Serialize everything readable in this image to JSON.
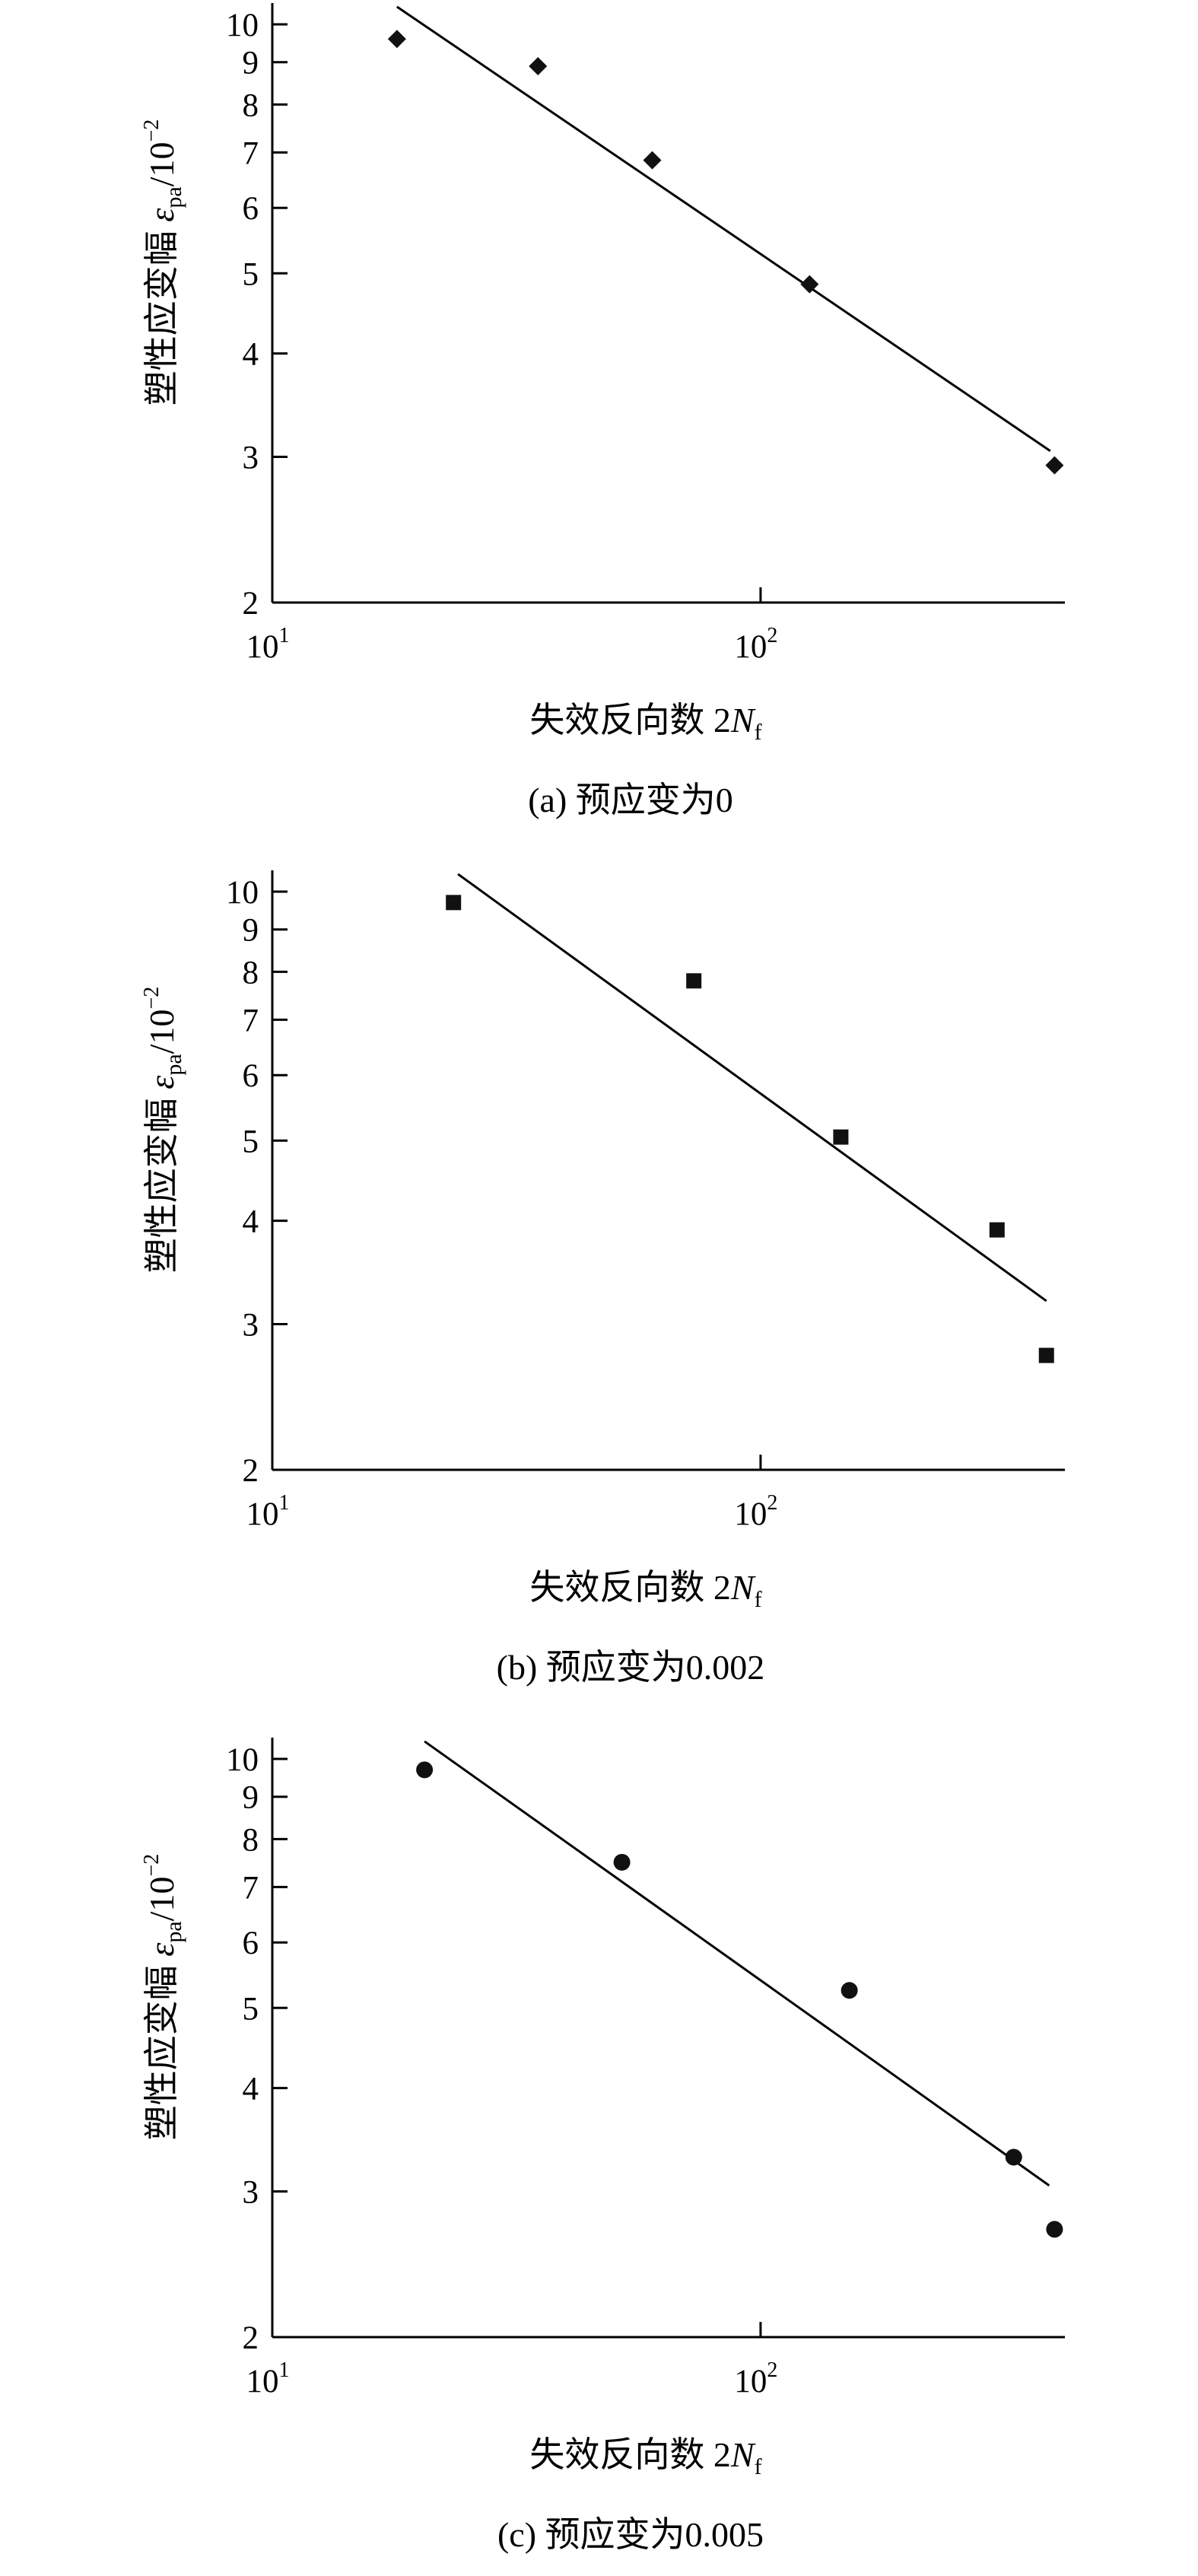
{
  "chart_data": [
    {
      "type": "scatter",
      "panel": "a",
      "marker": "diamond",
      "caption": "(a) 预应变为0",
      "xlabel": "失效反向数 2",
      "xlabel_var": "N",
      "xlabel_sub": "f",
      "ylabel": "塑性应变幅 ",
      "ylabel_var": "ε",
      "ylabel_sub": "pa",
      "ylabel_unit": "/10",
      "ylabel_exp": "−2",
      "x_scale": "log",
      "y_scale": "log",
      "xlim": [
        10,
        420
      ],
      "ylim": [
        2,
        10.3
      ],
      "x_ticks": [
        {
          "value": 10,
          "base": "10",
          "exp": "1"
        },
        {
          "value": 100,
          "base": "10",
          "exp": "2"
        }
      ],
      "y_ticks": [
        {
          "value": 2,
          "label": "2"
        },
        {
          "value": 3,
          "label": "3"
        },
        {
          "value": 4,
          "label": "4"
        },
        {
          "value": 5,
          "label": "5"
        },
        {
          "value": 6,
          "label": "6"
        },
        {
          "value": 7,
          "label": "7"
        },
        {
          "value": 8,
          "label": "8"
        },
        {
          "value": 9,
          "label": "9"
        },
        {
          "value": 10,
          "label": "10"
        }
      ],
      "points": [
        [
          18,
          9.6
        ],
        [
          35,
          8.9
        ],
        [
          60,
          6.85
        ],
        [
          126,
          4.85
        ],
        [
          400,
          2.93
        ]
      ],
      "fit_line": [
        [
          18,
          10.5
        ],
        [
          392,
          3.05
        ]
      ],
      "grid": false
    },
    {
      "type": "scatter",
      "panel": "b",
      "marker": "square",
      "caption": "(b) 预应变为0.002",
      "xlabel": "失效反向数 2",
      "xlabel_var": "N",
      "xlabel_sub": "f",
      "ylabel": "塑性应变幅 ",
      "ylabel_var": "ε",
      "ylabel_sub": "pa",
      "ylabel_unit": "/10",
      "ylabel_exp": "−2",
      "x_scale": "log",
      "y_scale": "log",
      "xlim": [
        10,
        420
      ],
      "ylim": [
        2,
        10.3
      ],
      "x_ticks": [
        {
          "value": 10,
          "base": "10",
          "exp": "1"
        },
        {
          "value": 100,
          "base": "10",
          "exp": "2"
        }
      ],
      "y_ticks": [
        {
          "value": 2,
          "label": "2"
        },
        {
          "value": 3,
          "label": "3"
        },
        {
          "value": 4,
          "label": "4"
        },
        {
          "value": 5,
          "label": "5"
        },
        {
          "value": 6,
          "label": "6"
        },
        {
          "value": 7,
          "label": "7"
        },
        {
          "value": 8,
          "label": "8"
        },
        {
          "value": 9,
          "label": "9"
        },
        {
          "value": 10,
          "label": "10"
        }
      ],
      "points": [
        [
          23.5,
          9.7
        ],
        [
          73,
          7.8
        ],
        [
          146,
          5.05
        ],
        [
          305,
          3.9
        ],
        [
          385,
          2.75
        ]
      ],
      "fit_line": [
        [
          24,
          10.5
        ],
        [
          385,
          3.2
        ]
      ],
      "grid": false
    },
    {
      "type": "scatter",
      "panel": "c",
      "marker": "circle",
      "caption": "(c) 预应变为0.005",
      "xlabel": "失效反向数 2",
      "xlabel_var": "N",
      "xlabel_sub": "f",
      "ylabel": "塑性应变幅 ",
      "ylabel_var": "ε",
      "ylabel_sub": "pa",
      "ylabel_unit": "/10",
      "ylabel_exp": "−2",
      "x_scale": "log",
      "y_scale": "log",
      "xlim": [
        10,
        420
      ],
      "ylim": [
        2,
        10.3
      ],
      "x_ticks": [
        {
          "value": 10,
          "base": "10",
          "exp": "1"
        },
        {
          "value": 100,
          "base": "10",
          "exp": "2"
        }
      ],
      "y_ticks": [
        {
          "value": 2,
          "label": "2"
        },
        {
          "value": 3,
          "label": "3"
        },
        {
          "value": 4,
          "label": "4"
        },
        {
          "value": 5,
          "label": "5"
        },
        {
          "value": 6,
          "label": "6"
        },
        {
          "value": 7,
          "label": "7"
        },
        {
          "value": 8,
          "label": "8"
        },
        {
          "value": 9,
          "label": "9"
        },
        {
          "value": 10,
          "label": "10"
        }
      ],
      "points": [
        [
          20.5,
          9.7
        ],
        [
          52,
          7.5
        ],
        [
          152,
          5.25
        ],
        [
          330,
          3.3
        ],
        [
          400,
          2.7
        ]
      ],
      "fit_line": [
        [
          20.5,
          10.5
        ],
        [
          390,
          3.05
        ]
      ],
      "grid": false
    }
  ]
}
